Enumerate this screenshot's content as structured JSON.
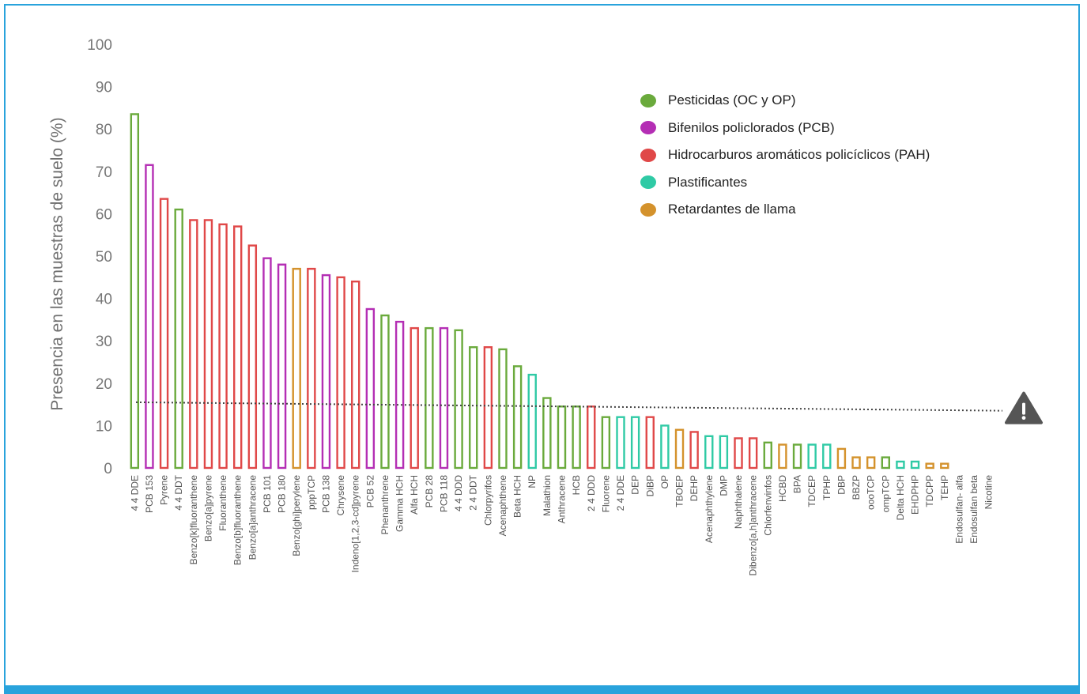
{
  "colors": {
    "frame_border": "#29a3dc",
    "Pesticidas": "#6aaa3c",
    "PCB": "#b42eb4",
    "PAH": "#e04848",
    "Plastificantes": "#2fcaa5",
    "Retardantes": "#d4922c",
    "threshold_line": "#444444",
    "warning_icon": "#555555"
  },
  "chart_data": {
    "type": "bar",
    "ylabel": "Presencia en las muestras de suelo (%)",
    "xlabel": "",
    "ylim": [
      0,
      100
    ],
    "yticks": [
      "0",
      "10",
      "20",
      "30",
      "40",
      "50",
      "60",
      "70",
      "80",
      "90",
      "100"
    ],
    "grid": false,
    "legend_position": "top-right",
    "threshold_line": {
      "style": "dotted",
      "y_start": 15.5,
      "y_end": 13.5,
      "end_marker": "warning-triangle-icon"
    },
    "groups": [
      {
        "key": "Pesticidas",
        "label": "Pesticidas (OC y OP)"
      },
      {
        "key": "PCB",
        "label": "Bifenilos policlorados (PCB)"
      },
      {
        "key": "PAH",
        "label": "Hidrocarburos aromáticos policíclicos (PAH)"
      },
      {
        "key": "Plastificantes",
        "label": "Plastificantes"
      },
      {
        "key": "Retardantes",
        "label": "Retardantes de llama"
      }
    ],
    "bars": [
      {
        "name": "4 4 DDE",
        "value": 83.5,
        "group": "Pesticidas"
      },
      {
        "name": "PCB 153",
        "value": 71.5,
        "group": "PCB"
      },
      {
        "name": "Pyrene",
        "value": 63.5,
        "group": "PAH"
      },
      {
        "name": "4 4 DDT",
        "value": 61,
        "group": "Pesticidas"
      },
      {
        "name": "Benzo[k]fluoranthene",
        "value": 58.5,
        "group": "PAH"
      },
      {
        "name": "Benzo[a]pyrene",
        "value": 58.5,
        "group": "PAH"
      },
      {
        "name": "Fluoranthene",
        "value": 57.5,
        "group": "PAH"
      },
      {
        "name": "Benzo[b]fluoranthene",
        "value": 57,
        "group": "PAH"
      },
      {
        "name": "Benzo[a]anthracene",
        "value": 52.5,
        "group": "PAH"
      },
      {
        "name": "PCB 101",
        "value": 49.5,
        "group": "PCB"
      },
      {
        "name": "PCB 180",
        "value": 48,
        "group": "PCB"
      },
      {
        "name": "Benzo[ghi]perylene",
        "value": 47,
        "group": "Retardantes"
      },
      {
        "name": "pppTCP",
        "value": 47,
        "group": "PAH"
      },
      {
        "name": "PCB 138",
        "value": 45.5,
        "group": "PCB"
      },
      {
        "name": "Chrysene",
        "value": 45,
        "group": "PAH"
      },
      {
        "name": "Indeno[1,2,3-cd]pyrene",
        "value": 44,
        "group": "PAH"
      },
      {
        "name": "PCB 52",
        "value": 37.5,
        "group": "PCB"
      },
      {
        "name": "Phenanthrene",
        "value": 36,
        "group": "Pesticidas"
      },
      {
        "name": "Gamma HCH",
        "value": 34.5,
        "group": "PCB"
      },
      {
        "name": "Alfa HCH",
        "value": 33,
        "group": "PAH"
      },
      {
        "name": "PCB 28",
        "value": 33,
        "group": "Pesticidas"
      },
      {
        "name": "PCB 118",
        "value": 33,
        "group": "PCB"
      },
      {
        "name": "4 4 DDD",
        "value": 32.5,
        "group": "Pesticidas"
      },
      {
        "name": "2 4 DDT",
        "value": 28.5,
        "group": "Pesticidas"
      },
      {
        "name": "Chlorpyrifos",
        "value": 28.5,
        "group": "PAH"
      },
      {
        "name": "Acenaphthene",
        "value": 28,
        "group": "Pesticidas"
      },
      {
        "name": "Beta HCH",
        "value": 24,
        "group": "Pesticidas"
      },
      {
        "name": "NP",
        "value": 22,
        "group": "Plastificantes"
      },
      {
        "name": "Malathion",
        "value": 16.5,
        "group": "Pesticidas"
      },
      {
        "name": "Anthracene",
        "value": 14.5,
        "group": "Pesticidas"
      },
      {
        "name": "HCB",
        "value": 14.5,
        "group": "Pesticidas"
      },
      {
        "name": "2 4 DDD",
        "value": 14.5,
        "group": "PAH"
      },
      {
        "name": "Fluorene",
        "value": 12,
        "group": "Pesticidas"
      },
      {
        "name": "2 4 DDE",
        "value": 12,
        "group": "Plastificantes"
      },
      {
        "name": "DEP",
        "value": 12,
        "group": "Plastificantes"
      },
      {
        "name": "DiBP",
        "value": 12,
        "group": "PAH"
      },
      {
        "name": "OP",
        "value": 10,
        "group": "Plastificantes"
      },
      {
        "name": "TBOEP",
        "value": 9,
        "group": "Retardantes"
      },
      {
        "name": "DEHP",
        "value": 8.5,
        "group": "PAH"
      },
      {
        "name": "Acenaphthylene",
        "value": 7.5,
        "group": "Plastificantes"
      },
      {
        "name": "DMP",
        "value": 7.5,
        "group": "Plastificantes"
      },
      {
        "name": "Naphthalene",
        "value": 7,
        "group": "PAH"
      },
      {
        "name": "Dibenzo[a,h]anthracene",
        "value": 7,
        "group": "PAH"
      },
      {
        "name": "Chlorfenvinfos",
        "value": 6,
        "group": "Pesticidas"
      },
      {
        "name": "HCBD",
        "value": 5.5,
        "group": "Retardantes"
      },
      {
        "name": "BPA",
        "value": 5.5,
        "group": "Pesticidas"
      },
      {
        "name": "TDCEP",
        "value": 5.5,
        "group": "Plastificantes"
      },
      {
        "name": "TPHP",
        "value": 5.5,
        "group": "Plastificantes"
      },
      {
        "name": "DBP",
        "value": 4.5,
        "group": "Retardantes"
      },
      {
        "name": "BBZP",
        "value": 2.5,
        "group": "Retardantes"
      },
      {
        "name": "oooTCP",
        "value": 2.5,
        "group": "Retardantes"
      },
      {
        "name": "ompTCP",
        "value": 2.5,
        "group": "Pesticidas"
      },
      {
        "name": "Delta HCH",
        "value": 1.5,
        "group": "Plastificantes"
      },
      {
        "name": "EHDPHP",
        "value": 1.5,
        "group": "Plastificantes"
      },
      {
        "name": "TDCPP",
        "value": 1,
        "group": "Retardantes"
      },
      {
        "name": "TEHP",
        "value": 1,
        "group": "Retardantes"
      },
      {
        "name": "Endosulfan- alfa",
        "value": 0,
        "group": "Pesticidas"
      },
      {
        "name": "Endosulfan beta",
        "value": 0,
        "group": "Pesticidas"
      },
      {
        "name": "Nicotine",
        "value": 0,
        "group": "Pesticidas"
      }
    ]
  }
}
